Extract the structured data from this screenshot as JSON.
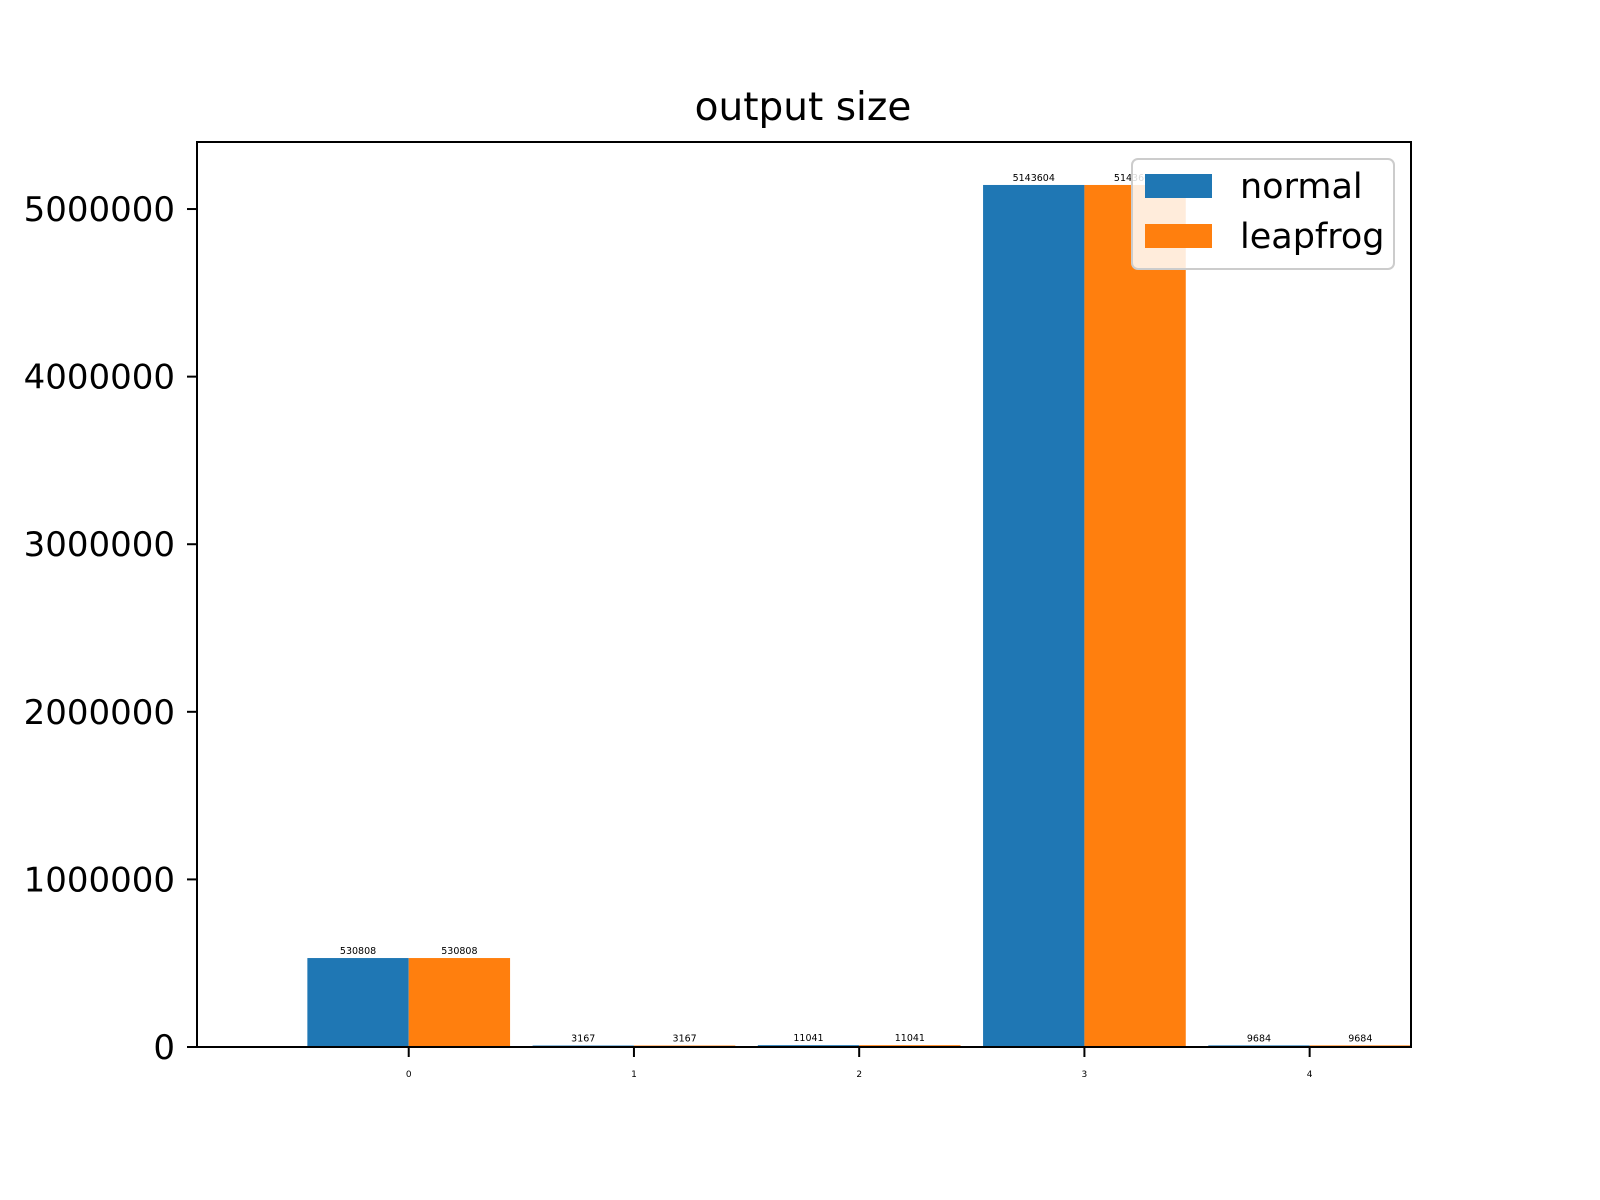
{
  "chart_data": {
    "type": "bar",
    "title": "output size",
    "xlabel": "",
    "ylabel": "",
    "categories": [
      "0",
      "1",
      "2",
      "3",
      "4"
    ],
    "series": [
      {
        "name": "normal",
        "color": "#1f77b4",
        "values": [
          530808,
          3167,
          11041,
          5143604,
          9684
        ]
      },
      {
        "name": "leapfrog",
        "color": "#ff7f0e",
        "values": [
          530808,
          3167,
          11041,
          5143604,
          9684
        ]
      }
    ],
    "yticks": [
      0,
      1000000,
      2000000,
      3000000,
      4000000,
      5000000
    ],
    "ytick_labels": [
      "0",
      "1000000",
      "2000000",
      "3000000",
      "4000000",
      "5000000"
    ],
    "ylim": [
      0,
      5400000
    ],
    "grid": false,
    "legend_position": "top-right",
    "data_labels": true
  }
}
